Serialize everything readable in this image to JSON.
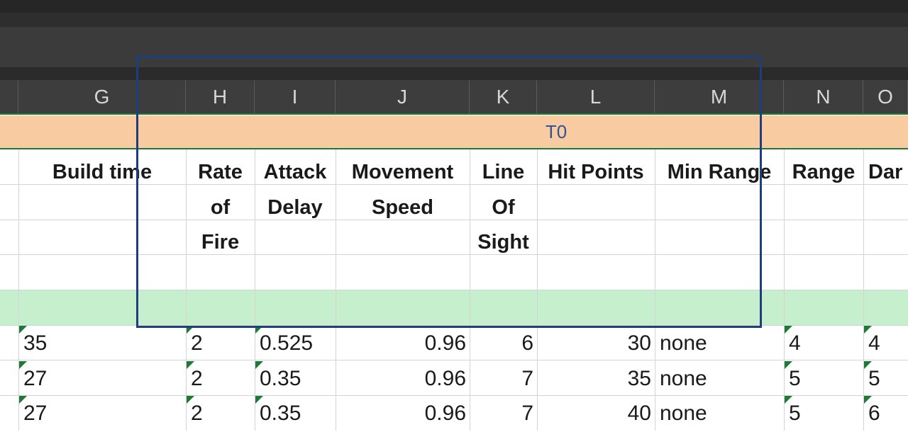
{
  "columns": [
    "G",
    "H",
    "I",
    "J",
    "K",
    "L",
    "M",
    "N",
    "O"
  ],
  "band_label": "T0",
  "headers": {
    "build_time": [
      "Build time"
    ],
    "rate_of_fire": [
      "Rate",
      "of",
      "Fire"
    ],
    "attack_delay": [
      "Attack",
      "Delay"
    ],
    "movement_speed": [
      "Movement",
      "Speed"
    ],
    "line_of_sight": [
      "Line",
      "Of",
      "Sight"
    ],
    "hit_points": [
      "Hit Points"
    ],
    "min_range": [
      "Min Range"
    ],
    "range": [
      "Range"
    ],
    "damage": [
      "Dar"
    ]
  },
  "rows": [
    {
      "build_time": "35",
      "rate_of_fire": "2",
      "attack_delay": "0.525",
      "movement_speed": "0.96",
      "line_of_sight": "6",
      "hit_points": "30",
      "min_range": "none",
      "range": "4",
      "damage": "4"
    },
    {
      "build_time": "27",
      "rate_of_fire": "2",
      "attack_delay": "0.35",
      "movement_speed": "0.96",
      "line_of_sight": "7",
      "hit_points": "35",
      "min_range": "none",
      "range": "5",
      "damage": "5"
    },
    {
      "build_time": "27",
      "rate_of_fire": "2",
      "attack_delay": "0.35",
      "movement_speed": "0.96",
      "line_of_sight": "7",
      "hit_points": "40",
      "min_range": "none",
      "range": "5",
      "damage": "6"
    }
  ],
  "colors": {
    "band_fill": "#f8cba1",
    "band_text": "#2f5597",
    "green_row": "#c6efce",
    "selection_outline": "#1f3f7a",
    "header_bg": "#3d3d3d",
    "error_triangle": "#1c7a34"
  }
}
